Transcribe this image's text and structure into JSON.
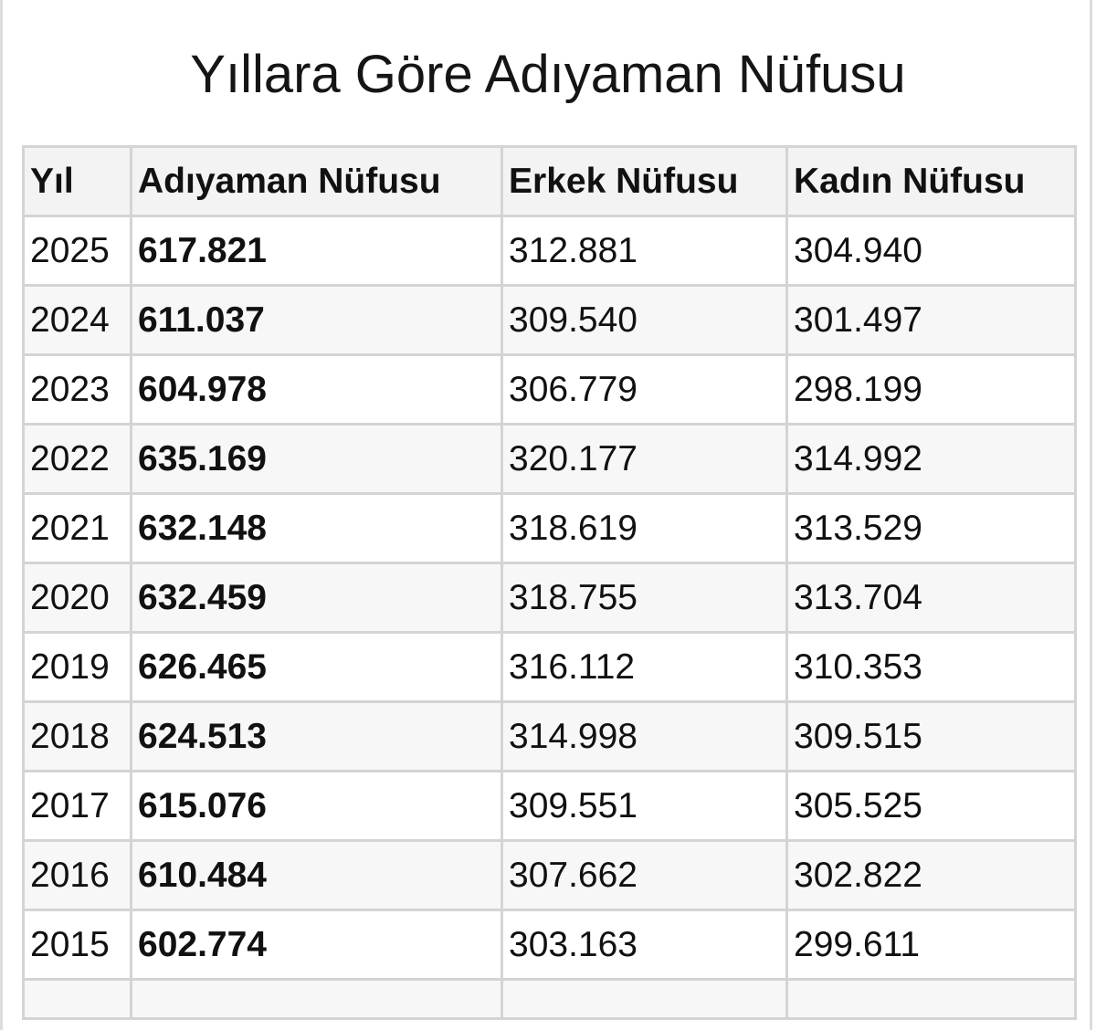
{
  "header": {
    "title": "Yıllara Göre Adıyaman Nüfusu"
  },
  "table": {
    "columns": [
      "Yıl",
      "Adıyaman Nüfusu",
      "Erkek Nüfusu",
      "Kadın Nüfusu"
    ],
    "rows": [
      [
        "2025",
        "617.821",
        "312.881",
        "304.940"
      ],
      [
        "2024",
        "611.037",
        "309.540",
        "301.497"
      ],
      [
        "2023",
        "604.978",
        "306.779",
        "298.199"
      ],
      [
        "2022",
        "635.169",
        "320.177",
        "314.992"
      ],
      [
        "2021",
        "632.148",
        "318.619",
        "313.529"
      ],
      [
        "2020",
        "632.459",
        "318.755",
        "313.704"
      ],
      [
        "2019",
        "626.465",
        "316.112",
        "310.353"
      ],
      [
        "2018",
        "624.513",
        "314.998",
        "309.515"
      ],
      [
        "2017",
        "615.076",
        "309.551",
        "305.525"
      ],
      [
        "2016",
        "610.484",
        "307.662",
        "302.822"
      ],
      [
        "2015",
        "602.774",
        "303.163",
        "299.611"
      ]
    ]
  }
}
